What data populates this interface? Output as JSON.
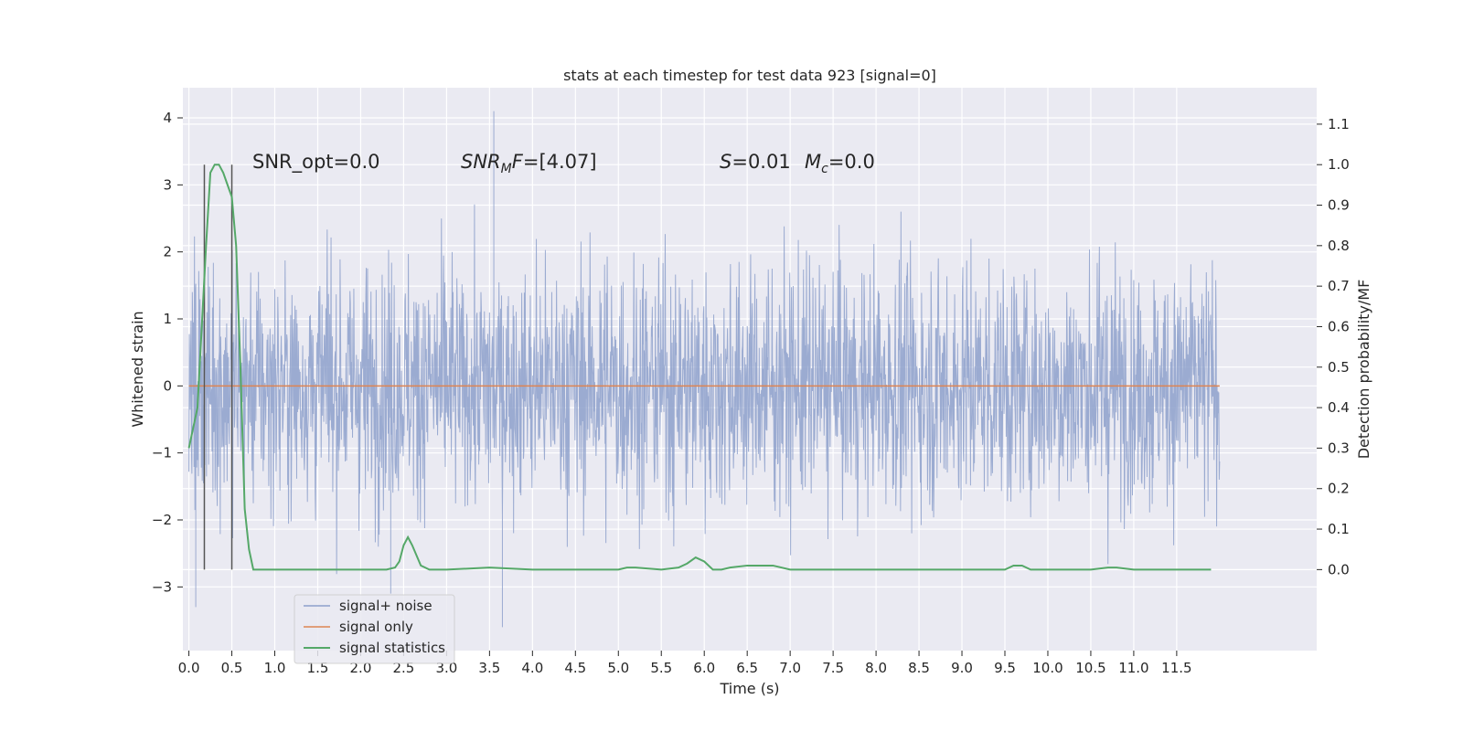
{
  "chart_data": {
    "type": "line",
    "title": "stats at each timestep for test data 923 [signal=0]",
    "xlabel": "Time (s)",
    "ylabel_left": "Whitened strain",
    "ylabel_right": "Detection probability/MF",
    "xlim": [
      -0.07,
      13.13
    ],
    "ylim_left": [
      -3.95,
      4.45
    ],
    "ylim_right": [
      -0.2,
      1.19
    ],
    "x_ticks": [
      0.0,
      0.5,
      1.0,
      1.5,
      2.0,
      2.5,
      3.0,
      3.5,
      4.0,
      4.5,
      5.0,
      5.5,
      6.0,
      6.5,
      7.0,
      7.5,
      8.0,
      8.5,
      9.0,
      9.5,
      10.0,
      10.5,
      11.0,
      11.5
    ],
    "x_tick_labels": [
      "0.0",
      "0.5",
      "1.0",
      "1.5",
      "2.0",
      "2.5",
      "3.0",
      "3.5",
      "4.0",
      "4.5",
      "5.0",
      "5.5",
      "6.0",
      "6.5",
      "7.0",
      "7.5",
      "8.0",
      "8.5",
      "9.0",
      "9.5",
      "10.0",
      "10.5",
      "11.0",
      "11.5"
    ],
    "y_left_ticks": [
      -3,
      -2,
      -1,
      0,
      1,
      2,
      3,
      4
    ],
    "y_left_tick_labels": [
      "−3",
      "−2",
      "−1",
      "0",
      "1",
      "2",
      "3",
      "4"
    ],
    "y_right_ticks": [
      0.0,
      0.1,
      0.2,
      0.3,
      0.4,
      0.5,
      0.6,
      0.7,
      0.8,
      0.9,
      1.0,
      1.1
    ],
    "y_right_tick_labels": [
      "0.0",
      "0.1",
      "0.2",
      "0.3",
      "0.4",
      "0.5",
      "0.6",
      "0.7",
      "0.8",
      "0.9",
      "1.0",
      "1.1"
    ],
    "grid": true,
    "legend_position": "lower-left",
    "annotations": {
      "snr_opt": "SNR_opt=0.0",
      "snr_mf": "[4.07]",
      "s": "=0.01",
      "mc": "=0.0"
    },
    "vertical_markers_x": [
      0.18,
      0.5
    ],
    "noise_series": {
      "name": "signal+ noise",
      "color": "#8da0cb",
      "duration": 12.0,
      "band_1sigma": [
        -1.55,
        1.45
      ],
      "typical_peak_range": [
        -2.5,
        2.4
      ],
      "max": 4.1,
      "min": -3.6
    },
    "signal_series": {
      "name": "signal only",
      "color": "#dd8452",
      "x": [
        0,
        12.0
      ],
      "y": [
        0,
        0
      ]
    },
    "stats_series": {
      "name": "signal statistics",
      "color": "#55a868",
      "x": [
        0.0,
        0.1,
        0.15,
        0.2,
        0.25,
        0.3,
        0.35,
        0.4,
        0.45,
        0.5,
        0.55,
        0.6,
        0.65,
        0.7,
        0.75,
        1.0,
        1.5,
        2.0,
        2.3,
        2.4,
        2.45,
        2.5,
        2.55,
        2.6,
        2.7,
        2.8,
        3.0,
        3.5,
        4.0,
        4.5,
        5.0,
        5.1,
        5.2,
        5.5,
        5.7,
        5.8,
        5.9,
        6.0,
        6.1,
        6.2,
        6.3,
        6.5,
        6.8,
        7.0,
        7.5,
        8.0,
        8.5,
        9.0,
        9.5,
        9.6,
        9.7,
        9.8,
        10.0,
        10.5,
        10.7,
        10.8,
        11.0,
        11.5,
        11.9
      ],
      "y": [
        0.3,
        0.4,
        0.6,
        0.8,
        0.98,
        1.0,
        1.0,
        0.98,
        0.95,
        0.92,
        0.8,
        0.5,
        0.15,
        0.05,
        0.0,
        0.0,
        0.0,
        0.0,
        0.0,
        0.005,
        0.02,
        0.06,
        0.08,
        0.06,
        0.01,
        0.0,
        0.0,
        0.005,
        0.0,
        0.0,
        0.0,
        0.005,
        0.005,
        0.0,
        0.005,
        0.015,
        0.03,
        0.02,
        0.0,
        0.0,
        0.005,
        0.01,
        0.01,
        0.0,
        0.0,
        0.0,
        0.0,
        0.0,
        0.0,
        0.01,
        0.01,
        0.0,
        0.0,
        0.0,
        0.005,
        0.005,
        0.0,
        0.0,
        0.0
      ]
    }
  }
}
